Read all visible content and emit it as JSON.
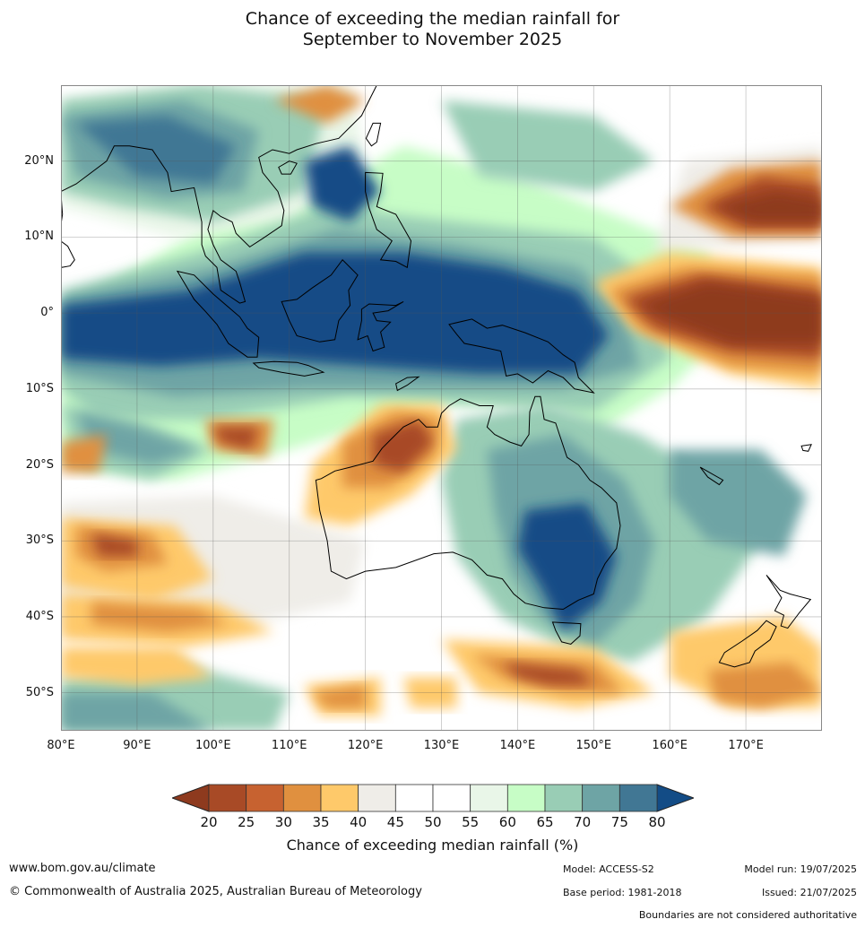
{
  "title_line1": "Chance of exceeding the median rainfall for",
  "title_line2": "September to November 2025",
  "map": {
    "lon_range": [
      80,
      180
    ],
    "lat_range": [
      -55,
      30
    ],
    "lat_labels": [
      "20°N",
      "10°N",
      "0°",
      "10°S",
      "20°S",
      "30°S",
      "40°S",
      "50°S"
    ],
    "lat_values": [
      20,
      10,
      0,
      -10,
      -20,
      -30,
      -40,
      -50
    ],
    "lon_labels": [
      "80°E",
      "90°E",
      "100°E",
      "110°E",
      "120°E",
      "130°E",
      "140°E",
      "150°E",
      "160°E",
      "170°E"
    ],
    "lon_values": [
      80,
      90,
      100,
      110,
      120,
      130,
      140,
      150,
      160,
      170
    ]
  },
  "colorbar": {
    "ticks": [
      "20",
      "25",
      "30",
      "35",
      "40",
      "45",
      "50",
      "55",
      "60",
      "65",
      "70",
      "75",
      "80"
    ],
    "colors": [
      "#a84a26",
      "#c76230",
      "#e0903f",
      "#fec96a",
      "#efede8",
      "#ffffff",
      "#ffffff",
      "#e9f6e8",
      "#c7fdc6",
      "#99cdb5",
      "#6ea4a5",
      "#417794"
    ],
    "under_color": "#8e3a1e",
    "over_color": "#134c86",
    "label": "Chance of exceeding median rainfall (%)"
  },
  "footer": {
    "website": "www.bom.gov.au/climate",
    "copyright": "© Commonwealth of Australia 2025, Australian Bureau of Meteorology",
    "model": "Model: ACCESS-S2",
    "base_period": "Base period: 1981-2018",
    "model_run": "Model run: 19/07/2025",
    "issued": "Issued: 21/07/2025",
    "boundaries": "Boundaries are not considered authoritative"
  }
}
